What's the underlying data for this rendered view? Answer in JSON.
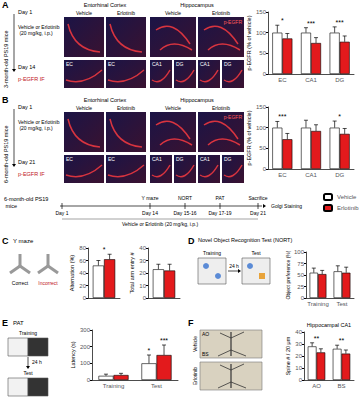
{
  "schematic_A": {
    "label": "A",
    "cohort": "3-month-old PS19 mice",
    "start": "Day 1",
    "end": "Day 14",
    "treatment": "Vehicle or Erlotinib (20 mg/kg, i.p.)",
    "readout": "p-EGFR IF"
  },
  "images_A": {
    "regions": [
      "Entorhinal Cortex",
      "Hippocampus"
    ],
    "groups": [
      "Vehicle",
      "Erlotinib"
    ],
    "stain": "p-EGFR",
    "insets": [
      "EC",
      "EC",
      "CA1",
      "DG",
      "CA1",
      "DG"
    ]
  },
  "schematic_B": {
    "label": "B",
    "cohort": "6-month-old PS19 mice",
    "start": "Day 1",
    "end": "Day 21",
    "treatment": "Vehicle or Erlotinib (20 mg/kg, i.p.)",
    "readout": "p-EGFR IF"
  },
  "images_B": {
    "regions": [
      "Entorhinal Cortex",
      "Hippocampus"
    ],
    "groups": [
      "Vehicle",
      "Erlotinib"
    ],
    "stain": "p-EGFR",
    "insets": [
      "EC",
      "EC",
      "CA1",
      "DG",
      "CA1",
      "DG"
    ]
  },
  "timeline": {
    "cohort": "6-month-old PS19 mice",
    "events": [
      {
        "day": "Day 1"
      },
      {
        "day": "Day 14",
        "test": "Y maze"
      },
      {
        "day": "Day 15-16",
        "test": "NORT"
      },
      {
        "day": "Day 17-19",
        "test": "PAT"
      },
      {
        "day": "Day 21",
        "test": "Sacrifice"
      }
    ],
    "treatment": "Vehicle or Erlotinib (20 mg/kg, i.p.)",
    "endpoint": "Golgi Staining"
  },
  "panel_C": {
    "label": "C",
    "title": "Y maze",
    "arms": [
      "Correct",
      "Incorrect"
    ]
  },
  "panel_D": {
    "label": "D",
    "title": "Novel Object Recognition Test (NORT)",
    "phases": [
      "Training",
      "Test"
    ],
    "delay": "24 h"
  },
  "panel_E": {
    "label": "E",
    "title": "PAT",
    "phases": [
      "Training",
      "Test"
    ],
    "delay": "24 h"
  },
  "panel_F": {
    "label": "F",
    "groups": [
      "Vehicle",
      "Erlotinib"
    ],
    "layers": [
      "AO",
      "BS"
    ]
  },
  "chart_data": [
    {
      "type": "bar",
      "ylabel": "p-EGFR (% of vehicle)",
      "categories": [
        "EC",
        "CA1",
        "DG"
      ],
      "series": [
        {
          "name": "Vehicle",
          "color": "#ffffff",
          "values": [
            100,
            100,
            100
          ],
          "errors": [
            18,
            12,
            14
          ]
        },
        {
          "name": "Erlotinib",
          "color": "#e31a1c",
          "values": [
            86,
            75,
            78
          ],
          "errors": [
            12,
            13,
            14
          ]
        }
      ],
      "ylim": [
        0,
        150
      ],
      "yticks": [
        0,
        50,
        100,
        150
      ],
      "annotations": [
        {
          "text": "*",
          "category": "EC"
        },
        {
          "text": "***",
          "category": "CA1"
        },
        {
          "text": "***",
          "category": "DG"
        }
      ]
    },
    {
      "type": "bar",
      "ylabel": "p-EGFR (% of vehicle)",
      "categories": [
        "EC",
        "CA1",
        "DG"
      ],
      "series": [
        {
          "name": "Vehicle",
          "color": "#ffffff",
          "values": [
            100,
            100,
            100
          ],
          "errors": [
            15,
            18,
            16
          ]
        },
        {
          "name": "Erlotinib",
          "color": "#e31a1c",
          "values": [
            72,
            92,
            85
          ],
          "errors": [
            14,
            15,
            13
          ]
        }
      ],
      "ylim": [
        0,
        150
      ],
      "yticks": [
        0,
        50,
        100,
        150
      ],
      "annotations": [
        {
          "text": "***",
          "category": "EC"
        },
        {
          "text": "*",
          "category": "DG"
        }
      ]
    },
    {
      "type": "bar",
      "ylabel": "Alternation (%)",
      "categories": [
        null
      ],
      "series": [
        {
          "name": "Vehicle",
          "color": "#ffffff",
          "values": [
            52
          ],
          "errors": [
            8
          ]
        },
        {
          "name": "Erlotinib",
          "color": "#e31a1c",
          "values": [
            62
          ],
          "errors": [
            8
          ]
        }
      ],
      "ylim": [
        0,
        80
      ],
      "yticks": [
        0,
        20,
        40,
        60,
        80
      ],
      "annotations": [
        {
          "text": "*",
          "category": null
        }
      ]
    },
    {
      "type": "bar",
      "ylabel": "Total arm entry #",
      "categories": [
        null
      ],
      "series": [
        {
          "name": "Vehicle",
          "color": "#ffffff",
          "values": [
            23
          ],
          "errors": [
            4
          ]
        },
        {
          "name": "Erlotinib",
          "color": "#e31a1c",
          "values": [
            22
          ],
          "errors": [
            5
          ]
        }
      ],
      "ylim": [
        0,
        40
      ],
      "yticks": [
        0,
        10,
        20,
        30,
        40
      ]
    },
    {
      "type": "bar",
      "ylabel": "Object preference (%)",
      "categories": [
        "Training",
        "Test"
      ],
      "series": [
        {
          "name": "Vehicle",
          "color": "#ffffff",
          "values": [
            55,
            58
          ],
          "errors": [
            10,
            12
          ]
        },
        {
          "name": "Erlotinib",
          "color": "#e31a1c",
          "values": [
            52,
            55
          ],
          "errors": [
            8,
            12
          ]
        }
      ],
      "ylim": [
        0,
        100
      ],
      "yticks": [
        0,
        25,
        50,
        75,
        100
      ]
    },
    {
      "type": "bar",
      "ylabel": "Latency (s)",
      "categories": [
        "Training",
        "Test"
      ],
      "series": [
        {
          "name": "Vehicle",
          "color": "#ffffff",
          "values": [
            25,
            100
          ],
          "errors": [
            10,
            50
          ]
        },
        {
          "name": "Erlotinib",
          "color": "#e31a1c",
          "values": [
            30,
            150
          ],
          "errors": [
            10,
            60
          ]
        }
      ],
      "ylim": [
        0,
        300
      ],
      "yticks": [
        0,
        100,
        200,
        300
      ],
      "annotations": [
        {
          "text": "*",
          "category": "Test",
          "series": "Vehicle"
        },
        {
          "text": "***",
          "category": "Test",
          "series": "Erlotinib"
        }
      ]
    },
    {
      "type": "bar",
      "title": "Hippocampal CA1",
      "ylabel": "Spine # / 20 μm",
      "categories": [
        "AO",
        "BS"
      ],
      "series": [
        {
          "name": "Vehicle",
          "color": "#ffffff",
          "values": [
            28,
            26
          ],
          "errors": [
            3,
            3
          ]
        },
        {
          "name": "Erlotinib",
          "color": "#e31a1c",
          "values": [
            23,
            22
          ],
          "errors": [
            3,
            3
          ]
        }
      ],
      "ylim": [
        0,
        40
      ],
      "yticks": [
        0,
        10,
        20,
        30,
        40
      ],
      "annotations": [
        {
          "text": "**",
          "category": "AO"
        },
        {
          "text": "**",
          "category": "BS"
        }
      ]
    }
  ]
}
